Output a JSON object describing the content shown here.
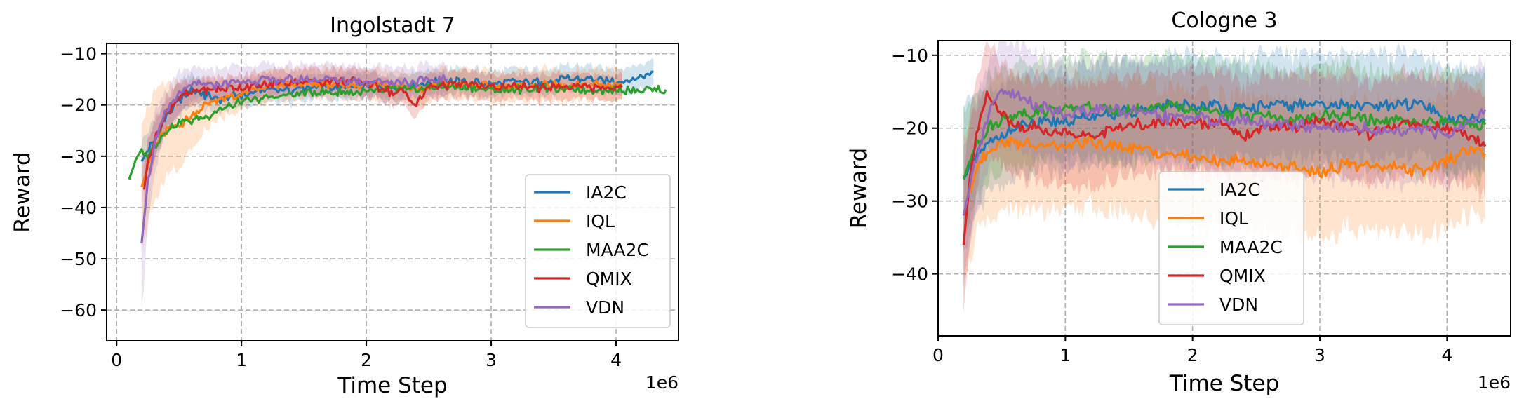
{
  "chart_data": [
    {
      "type": "line",
      "title": "Ingolstadt 7",
      "xlabel": "Time Step",
      "ylabel": "Reward",
      "x_multiplier": "1e6",
      "xlim": [
        -0.08,
        4.5
      ],
      "ylim": [
        -66,
        -8
      ],
      "xticks": [
        0,
        1,
        2,
        3,
        4
      ],
      "xtick_labels": [
        "0",
        "1",
        "2",
        "3",
        "4"
      ],
      "yticks": [
        -60,
        -50,
        -40,
        -30,
        -20,
        -10
      ],
      "ytick_labels": [
        "−60",
        "−50",
        "−40",
        "−30",
        "−20",
        "−10"
      ],
      "grid": true,
      "legend_position": "lower-right",
      "series": [
        {
          "name": "IA2C",
          "color": "#1f77b4",
          "x": [
            0.2,
            0.3,
            0.4,
            0.5,
            0.6,
            0.8,
            1.0,
            1.2,
            1.4,
            1.6,
            1.8,
            2.0,
            2.2,
            2.4,
            2.6,
            2.8,
            3.0,
            3.2,
            3.4,
            3.6,
            3.8,
            4.0,
            4.15,
            4.3
          ],
          "y": [
            -31,
            -27,
            -22,
            -19,
            -17,
            -19,
            -18,
            -17,
            -17,
            -16.5,
            -16.5,
            -16.5,
            -16.5,
            -16,
            -15.5,
            -15.5,
            -16,
            -15.5,
            -15.5,
            -15,
            -15,
            -15.5,
            -15,
            -13.5
          ],
          "band": [
            4,
            4,
            3,
            3,
            3,
            2.5,
            2.5,
            2.5,
            2.5,
            2.5,
            2.5,
            2.5,
            2.5,
            2.5,
            2.5,
            2.5,
            2.5,
            2.5,
            2.5,
            2.5,
            2.5,
            2.5,
            2.5,
            2.5
          ]
        },
        {
          "name": "IQL",
          "color": "#ff7f0e",
          "x": [
            0.2,
            0.3,
            0.4,
            0.5,
            0.6,
            0.7,
            0.8,
            1.0,
            1.2,
            1.4,
            1.6,
            1.8,
            2.0,
            2.2,
            2.4,
            2.6,
            2.8,
            3.0,
            3.2,
            3.4,
            3.6,
            3.8,
            4.0,
            4.05
          ],
          "y": [
            -36,
            -28,
            -25,
            -24,
            -22,
            -20,
            -19,
            -18,
            -16.5,
            -16,
            -16,
            -16,
            -16,
            -16,
            -17,
            -16,
            -16,
            -16.5,
            -16.5,
            -16,
            -16.5,
            -16,
            -16,
            -16
          ],
          "band": [
            14,
            10,
            9,
            8,
            6,
            5,
            4,
            3,
            3,
            3,
            3,
            3,
            3,
            3,
            3,
            3,
            3,
            3,
            3,
            3,
            3,
            3,
            3,
            3
          ]
        },
        {
          "name": "MAA2C",
          "color": "#2ca02c",
          "x": [
            0.1,
            0.15,
            0.2,
            0.25,
            0.3,
            0.4,
            0.5,
            0.6,
            0.7,
            0.8,
            0.9,
            1.0,
            1.2,
            1.4,
            1.6,
            1.8,
            2.0,
            2.2,
            2.4,
            2.6,
            2.8,
            3.0,
            3.2,
            3.4,
            3.6,
            3.8,
            4.0,
            4.2,
            4.4
          ],
          "y": [
            -34.5,
            -31,
            -29,
            -30,
            -28,
            -25,
            -23.5,
            -23,
            -22.5,
            -21,
            -20.5,
            -19.5,
            -18.5,
            -18,
            -17.5,
            -17.5,
            -17.5,
            -17,
            -17,
            -16.5,
            -16.5,
            -17,
            -17,
            -16.5,
            -17,
            -17,
            -17,
            -17,
            -17
          ]
        },
        {
          "name": "QMIX",
          "color": "#d62728",
          "x": [
            0.22,
            0.25,
            0.3,
            0.35,
            0.4,
            0.5,
            0.6,
            0.7,
            0.8,
            1.0,
            1.2,
            1.4,
            1.6,
            1.8,
            2.0,
            2.1,
            2.2,
            2.3,
            2.4,
            2.5,
            2.6,
            2.8,
            3.0,
            3.2,
            3.4,
            3.6,
            3.8,
            4.0,
            4.05
          ],
          "y": [
            -36.5,
            -31,
            -27,
            -24,
            -21.5,
            -18.5,
            -17.5,
            -17,
            -17,
            -16.5,
            -16,
            -15.5,
            -15.5,
            -15.5,
            -15.5,
            -16.5,
            -17.5,
            -17.5,
            -20,
            -16.5,
            -16,
            -16,
            -16.5,
            -16.5,
            -16.5,
            -16.5,
            -16.5,
            -16.5,
            -16.5
          ],
          "band": [
            5,
            4,
            4,
            3,
            3,
            3,
            2.5,
            2.5,
            2.5,
            2.5,
            2.5,
            2.5,
            2.5,
            2.5,
            2.5,
            2.5,
            2.5,
            2.5,
            2.5,
            2.5,
            2.5,
            2.5,
            2.5,
            2.5,
            2.5,
            2.5,
            2.5,
            2.5,
            2.5
          ]
        },
        {
          "name": "VDN",
          "color": "#9467bd",
          "x": [
            0.2,
            0.25,
            0.3,
            0.4,
            0.5,
            0.6,
            0.7,
            0.8,
            1.0,
            1.2,
            1.4,
            1.6,
            1.8,
            2.0,
            2.2,
            2.4,
            2.6,
            2.65
          ],
          "y": [
            -47,
            -35,
            -28,
            -21,
            -18,
            -16,
            -16,
            -16,
            -15.5,
            -15,
            -15,
            -15,
            -15,
            -15.5,
            -15.5,
            -15.5,
            -15,
            -15
          ],
          "band": [
            13,
            9,
            6,
            4,
            4,
            3,
            3,
            3,
            3,
            3,
            3,
            3,
            3,
            3,
            3,
            3,
            3,
            3
          ]
        }
      ]
    },
    {
      "type": "line",
      "title": "Cologne 3",
      "xlabel": "Time Step",
      "ylabel": "Reward",
      "x_multiplier": "1e6",
      "xlim": [
        0,
        4.5
      ],
      "ylim": [
        -48.5,
        -8
      ],
      "xticks": [
        0,
        1,
        2,
        3,
        4
      ],
      "xtick_labels": [
        "0",
        "1",
        "2",
        "3",
        "4"
      ],
      "yticks": [
        -40,
        -30,
        -20,
        -10
      ],
      "ytick_labels": [
        "−40",
        "−30",
        "−20",
        "−10"
      ],
      "grid": true,
      "legend_position": "lower-center",
      "series": [
        {
          "name": "IA2C",
          "color": "#1f77b4",
          "x": [
            0.2,
            0.3,
            0.4,
            0.5,
            0.6,
            0.8,
            1.0,
            1.2,
            1.4,
            1.6,
            1.8,
            2.0,
            2.2,
            2.4,
            2.6,
            2.8,
            3.0,
            3.2,
            3.4,
            3.6,
            3.8,
            4.0,
            4.2,
            4.3
          ],
          "y": [
            -27,
            -24,
            -22,
            -21,
            -20,
            -19.5,
            -19,
            -18.5,
            -18,
            -17.5,
            -17,
            -17,
            -17,
            -17.5,
            -17,
            -17,
            -16.5,
            -17,
            -17,
            -17,
            -16.5,
            -19,
            -18.5,
            -19
          ],
          "band": [
            10,
            8,
            7,
            7,
            7,
            7,
            7,
            7,
            7,
            7,
            7,
            7,
            7,
            7,
            7,
            7,
            7,
            7,
            7,
            7,
            7,
            7,
            7,
            7
          ]
        },
        {
          "name": "IQL",
          "color": "#ff7f0e",
          "x": [
            0.2,
            0.3,
            0.4,
            0.5,
            0.6,
            0.8,
            1.0,
            1.2,
            1.4,
            1.6,
            1.8,
            2.0,
            2.2,
            2.4,
            2.6,
            2.8,
            3.0,
            3.2,
            3.4,
            3.6,
            3.8,
            4.0,
            4.2,
            4.3
          ],
          "y": [
            -32,
            -25,
            -23,
            -22,
            -22,
            -22.5,
            -22.5,
            -22,
            -22.5,
            -23,
            -23.5,
            -24,
            -24.5,
            -24.5,
            -25,
            -25.5,
            -26,
            -25,
            -25,
            -25.5,
            -26,
            -24.5,
            -23,
            -23.5
          ],
          "band": [
            11,
            9,
            9,
            9,
            9,
            9,
            9,
            9,
            9,
            9,
            9,
            9,
            9,
            9,
            9,
            9,
            9,
            9,
            9,
            9,
            9,
            9,
            9,
            9
          ]
        },
        {
          "name": "MAA2C",
          "color": "#2ca02c",
          "x": [
            0.2,
            0.3,
            0.4,
            0.5,
            0.6,
            0.8,
            1.0,
            1.2,
            1.4,
            1.6,
            1.8,
            2.0,
            2.2,
            2.4,
            2.6,
            2.8,
            3.0,
            3.2,
            3.4,
            3.6,
            3.8,
            4.0,
            4.2,
            4.3
          ],
          "y": [
            -27,
            -22,
            -20,
            -19,
            -18,
            -17.5,
            -17.5,
            -17,
            -17.5,
            -17.5,
            -17,
            -17.5,
            -18,
            -18,
            -18.5,
            -19,
            -18.5,
            -18,
            -19,
            -19,
            -19.5,
            -19,
            -19.5,
            -19.5
          ],
          "band": [
            9,
            7,
            7,
            7,
            7,
            7,
            7,
            7,
            7,
            7,
            7,
            7,
            7,
            7,
            7,
            7,
            7,
            7,
            7,
            7,
            7,
            7,
            7,
            7
          ]
        },
        {
          "name": "QMIX",
          "color": "#d62728",
          "x": [
            0.2,
            0.25,
            0.3,
            0.35,
            0.4,
            0.5,
            0.6,
            0.8,
            1.0,
            1.2,
            1.4,
            1.6,
            1.8,
            2.0,
            2.2,
            2.4,
            2.6,
            2.8,
            3.0,
            3.2,
            3.4,
            3.6,
            3.8,
            4.0,
            4.2,
            4.3
          ],
          "y": [
            -36,
            -27,
            -21,
            -17,
            -15,
            -18,
            -19.5,
            -20,
            -20.5,
            -21,
            -20,
            -19.5,
            -19,
            -19.5,
            -19,
            -21,
            -20,
            -20,
            -19,
            -19.5,
            -21,
            -19.5,
            -19.5,
            -20,
            -21,
            -22.5
          ],
          "band": [
            9,
            8,
            7,
            7,
            7,
            7,
            7,
            7,
            7,
            7,
            7,
            7,
            7,
            7,
            7,
            7,
            7,
            7,
            7,
            7,
            7,
            7,
            7,
            7,
            7,
            7
          ]
        },
        {
          "name": "VDN",
          "color": "#9467bd",
          "x": [
            0.2,
            0.3,
            0.4,
            0.5,
            0.6,
            0.8,
            1.0,
            1.2,
            1.4,
            1.6,
            1.8,
            2.0,
            2.2,
            2.4,
            2.6,
            2.8,
            3.0,
            3.2,
            3.4,
            3.6,
            3.8,
            4.0,
            4.2,
            4.3
          ],
          "y": [
            -32,
            -24,
            -18,
            -15,
            -15.5,
            -17,
            -18,
            -17.5,
            -17.5,
            -18,
            -18.5,
            -18.5,
            -19,
            -19,
            -19.5,
            -19.5,
            -20,
            -20,
            -20,
            -20.5,
            -20,
            -21,
            -19,
            -17.5
          ],
          "band": [
            9,
            8,
            7,
            7,
            7,
            7,
            7,
            7,
            7,
            7,
            7,
            7,
            7,
            7,
            7,
            7,
            7,
            7,
            7,
            7,
            7,
            7,
            7,
            7
          ]
        }
      ]
    }
  ]
}
